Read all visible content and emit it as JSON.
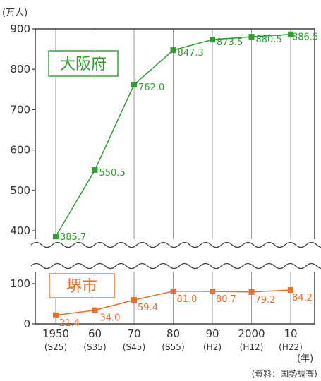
{
  "chart_data": {
    "type": "line",
    "y_unit_label": "(万人)",
    "x_unit_label": "(年)",
    "source": "(資料：国勢調査)",
    "categories": [
      "1950",
      "60",
      "70",
      "80",
      "90",
      "2000",
      "10"
    ],
    "sub_categories": [
      "(S25)",
      "(S35)",
      "(S45)",
      "(S55)",
      "(H2)",
      "(H12)",
      "(H22)"
    ],
    "y_ticks_upper": [
      400,
      500,
      600,
      700,
      800,
      900
    ],
    "y_ticks_lower": [
      0,
      100
    ],
    "broken_axis": true,
    "ylim_upper": [
      400,
      900
    ],
    "ylim_lower": [
      0,
      100
    ],
    "grid": "vertical",
    "series": [
      {
        "name": "大阪府",
        "color": "#2e9e2e",
        "values": [
          385.7,
          550.5,
          762.0,
          847.3,
          873.5,
          880.5,
          886.5
        ],
        "labels": [
          "385.7",
          "550.5",
          "762.0",
          "847.3",
          "873.5",
          "880.5",
          "886.5"
        ]
      },
      {
        "name": "堺市",
        "color": "#ee6d2c",
        "values": [
          21.4,
          34.0,
          59.4,
          81.0,
          80.7,
          79.2,
          84.2
        ],
        "labels": [
          "21.4",
          "34.0",
          "59.4",
          "81.0",
          "80.7",
          "79.2",
          "84.2"
        ]
      }
    ]
  }
}
